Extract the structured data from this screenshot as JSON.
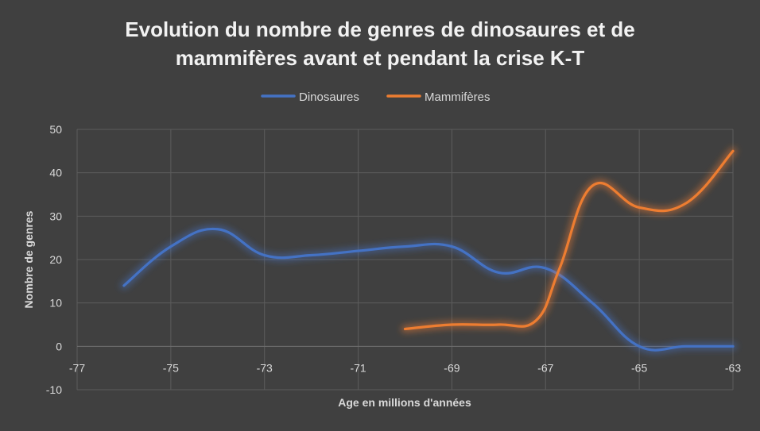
{
  "chart_data": {
    "type": "line",
    "title_line1": "Evolution du nombre de genres de dinosaures et de",
    "title_line2": "mammifères avant et pendant la crise K-T",
    "xlabel": "Age en millions d'années",
    "ylabel": "Nombre de genres",
    "xlim": [
      -77,
      -63
    ],
    "ylim": [
      -10,
      50
    ],
    "xticks": [
      -77,
      -75,
      -73,
      -71,
      -69,
      -67,
      -65,
      -63
    ],
    "yticks": [
      -10,
      0,
      10,
      20,
      30,
      40,
      50
    ],
    "xtick_labels": [
      "-77",
      "-75",
      "-73",
      "-71",
      "-69",
      "-67",
      "-65",
      "-63"
    ],
    "ytick_labels": [
      "-10",
      "0",
      "10",
      "20",
      "30",
      "40",
      "50"
    ],
    "grid": true,
    "legend_position": "top",
    "smooth": true,
    "series": [
      {
        "name": "Dinosaures",
        "color": "#4472c4",
        "points": [
          {
            "x": -76,
            "y": 14
          },
          {
            "x": -75,
            "y": 23
          },
          {
            "x": -74,
            "y": 27
          },
          {
            "x": -73,
            "y": 21
          },
          {
            "x": -72,
            "y": 21
          },
          {
            "x": -71,
            "y": 22
          },
          {
            "x": -70,
            "y": 23
          },
          {
            "x": -69,
            "y": 23
          },
          {
            "x": -68,
            "y": 17
          },
          {
            "x": -67,
            "y": 18
          },
          {
            "x": -66,
            "y": 10
          },
          {
            "x": -65,
            "y": 0
          },
          {
            "x": -64,
            "y": 0
          },
          {
            "x": -63,
            "y": 0
          }
        ]
      },
      {
        "name": "Mammifères",
        "color": "#ed7d31",
        "points": [
          {
            "x": -70,
            "y": 4
          },
          {
            "x": -69,
            "y": 5
          },
          {
            "x": -68,
            "y": 5
          },
          {
            "x": -67.2,
            "y": 6
          },
          {
            "x": -66.7,
            "y": 18
          },
          {
            "x": -66,
            "y": 37
          },
          {
            "x": -65,
            "y": 32
          },
          {
            "x": -64,
            "y": 33
          },
          {
            "x": -63,
            "y": 45
          }
        ]
      }
    ]
  }
}
